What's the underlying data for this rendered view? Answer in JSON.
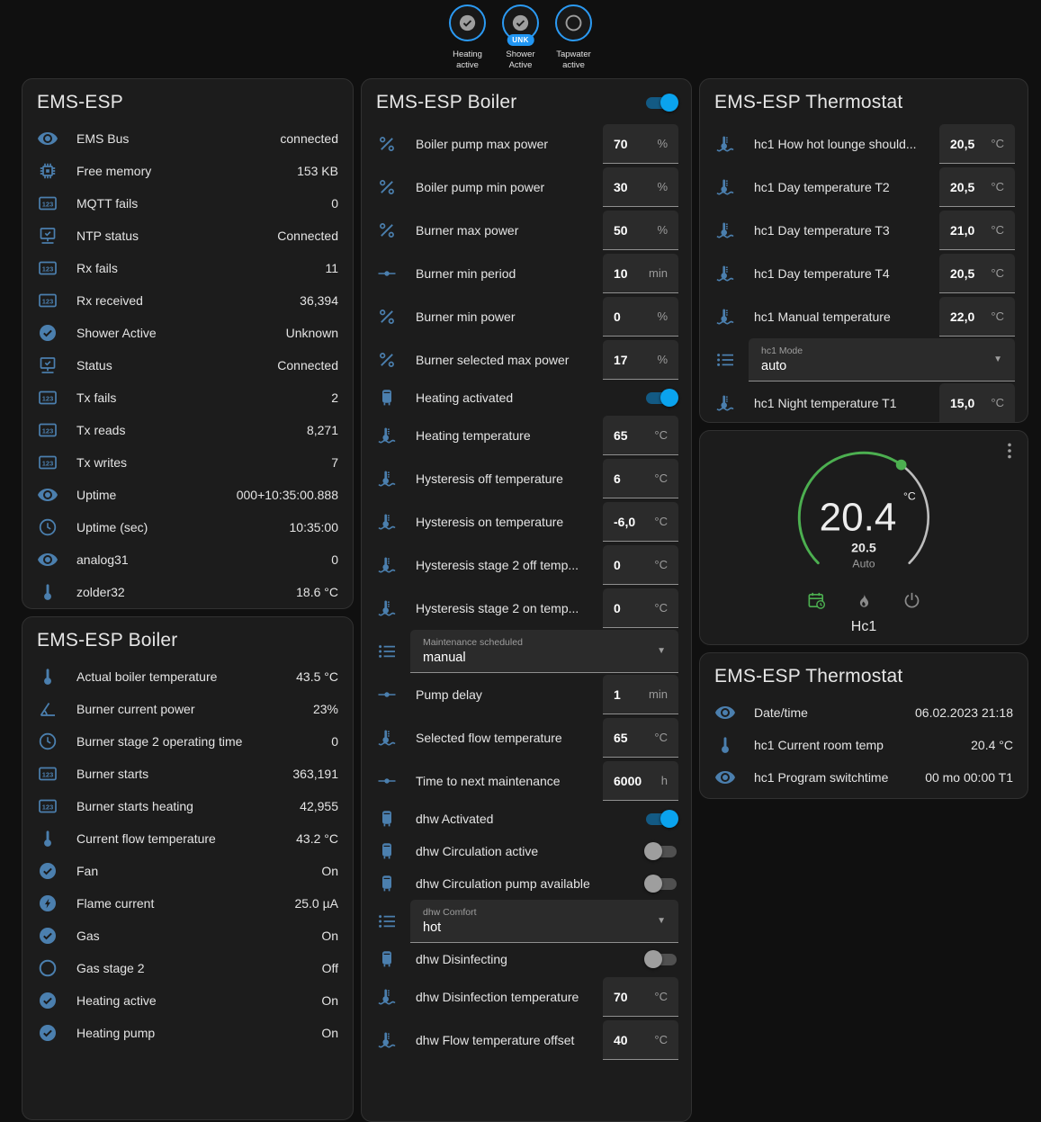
{
  "colors": {
    "page_bg": "#101010",
    "card_bg": "#1c1c1c",
    "icon_blue": "#4b7fae",
    "toggle_on_thumb": "#0aa3ee",
    "toggle_on_track": "#135a84",
    "badge_blue": "#2196f3",
    "dial_green": "#4caf50"
  },
  "top_badges": [
    {
      "icon": "check-circle",
      "label": "Heating active",
      "badge": null
    },
    {
      "icon": "check-circle",
      "label": "Shower Active",
      "badge": "UNK"
    },
    {
      "icon": "circle-outline",
      "label": "Tapwater active",
      "badge": null
    }
  ],
  "cards": {
    "left_status": {
      "title": "EMS-ESP",
      "rows": [
        {
          "icon": "eye",
          "name": "EMS Bus",
          "value": "connected"
        },
        {
          "icon": "chip",
          "name": "Free memory",
          "value": "153 KB"
        },
        {
          "icon": "counter",
          "name": "MQTT fails",
          "value": "0"
        },
        {
          "icon": "network-check",
          "name": "NTP status",
          "value": "Connected"
        },
        {
          "icon": "counter",
          "name": "Rx fails",
          "value": "11"
        },
        {
          "icon": "counter",
          "name": "Rx received",
          "value": "36,394"
        },
        {
          "icon": "check-circle",
          "name": "Shower Active",
          "value": "Unknown"
        },
        {
          "icon": "network-check",
          "name": "Status",
          "value": "Connected"
        },
        {
          "icon": "counter",
          "name": "Tx fails",
          "value": "2"
        },
        {
          "icon": "counter",
          "name": "Tx reads",
          "value": "8,271"
        },
        {
          "icon": "counter",
          "name": "Tx writes",
          "value": "7"
        },
        {
          "icon": "eye",
          "name": "Uptime",
          "value": "000+10:35:00.888"
        },
        {
          "icon": "clock",
          "name": "Uptime (sec)",
          "value": "10:35:00"
        },
        {
          "icon": "eye",
          "name": "analog31",
          "value": "0"
        },
        {
          "icon": "thermometer",
          "name": "zolder32",
          "value": "18.6 °C"
        }
      ]
    },
    "left_boiler": {
      "title": "EMS-ESP Boiler",
      "rows": [
        {
          "icon": "thermometer",
          "name": "Actual boiler temperature",
          "value": "43.5 °C"
        },
        {
          "icon": "angle-acute",
          "name": "Burner current power",
          "value": "23%"
        },
        {
          "icon": "clock",
          "name": "Burner stage 2 operating time",
          "value": "0"
        },
        {
          "icon": "counter",
          "name": "Burner starts",
          "value": "363,191"
        },
        {
          "icon": "counter",
          "name": "Burner starts heating",
          "value": "42,955"
        },
        {
          "icon": "thermometer",
          "name": "Current flow temperature",
          "value": "43.2 °C"
        },
        {
          "icon": "check-circle",
          "name": "Fan",
          "value": "On"
        },
        {
          "icon": "flash-circle",
          "name": "Flame current",
          "value": "25.0 µA"
        },
        {
          "icon": "check-circle",
          "name": "Gas",
          "value": "On"
        },
        {
          "icon": "circle-outline",
          "name": "Gas stage 2",
          "value": "Off"
        },
        {
          "icon": "check-circle",
          "name": "Heating active",
          "value": "On"
        },
        {
          "icon": "check-circle",
          "name": "Heating pump",
          "value": "On"
        }
      ]
    },
    "boiler_config": {
      "title": "EMS-ESP Boiler",
      "header_toggle": "on",
      "rows": [
        {
          "type": "number",
          "icon": "percent",
          "name": "Boiler pump max power",
          "value": "70",
          "unit": "%"
        },
        {
          "type": "number",
          "icon": "percent",
          "name": "Boiler pump min power",
          "value": "30",
          "unit": "%"
        },
        {
          "type": "number",
          "icon": "percent",
          "name": "Burner max power",
          "value": "50",
          "unit": "%"
        },
        {
          "type": "number",
          "icon": "ray-vertex",
          "name": "Burner min period",
          "value": "10",
          "unit": "min"
        },
        {
          "type": "number",
          "icon": "percent",
          "name": "Burner min power",
          "value": "0",
          "unit": "%"
        },
        {
          "type": "number",
          "icon": "percent",
          "name": "Burner selected max power",
          "value": "17",
          "unit": "%"
        },
        {
          "type": "toggle",
          "icon": "water-boiler",
          "name": "Heating activated",
          "value": "on"
        },
        {
          "type": "number",
          "icon": "coolant-temperature",
          "name": "Heating temperature",
          "value": "65",
          "unit": "°C"
        },
        {
          "type": "number",
          "icon": "coolant-temperature",
          "name": "Hysteresis off temperature",
          "value": "6",
          "unit": "°C"
        },
        {
          "type": "number",
          "icon": "coolant-temperature",
          "name": "Hysteresis on temperature",
          "value": "-6,0",
          "unit": "°C"
        },
        {
          "type": "number",
          "icon": "coolant-temperature",
          "name": "Hysteresis stage 2 off temp...",
          "value": "0",
          "unit": "°C"
        },
        {
          "type": "number",
          "icon": "coolant-temperature",
          "name": "Hysteresis stage 2 on temp...",
          "value": "0",
          "unit": "°C"
        },
        {
          "type": "select",
          "icon": "list",
          "name": "Maintenance scheduled",
          "value": "manual"
        },
        {
          "type": "number",
          "icon": "ray-vertex",
          "name": "Pump delay",
          "value": "1",
          "unit": "min"
        },
        {
          "type": "number",
          "icon": "coolant-temperature",
          "name": "Selected flow temperature",
          "value": "65",
          "unit": "°C"
        },
        {
          "type": "number",
          "icon": "ray-vertex",
          "name": "Time to next maintenance",
          "value": "6000",
          "unit": "h"
        },
        {
          "type": "toggle",
          "icon": "water-boiler",
          "name": "dhw Activated",
          "value": "on"
        },
        {
          "type": "toggle",
          "icon": "water-boiler",
          "name": "dhw Circulation active",
          "value": "off"
        },
        {
          "type": "toggle",
          "icon": "water-boiler",
          "name": "dhw Circulation pump available",
          "value": "off"
        },
        {
          "type": "select",
          "icon": "list",
          "name": "dhw Comfort",
          "value": "hot"
        },
        {
          "type": "toggle",
          "icon": "water-boiler",
          "name": "dhw Disinfecting",
          "value": "off"
        },
        {
          "type": "number",
          "icon": "coolant-temperature",
          "name": "dhw Disinfection temperature",
          "value": "70",
          "unit": "°C"
        },
        {
          "type": "number",
          "icon": "coolant-temperature",
          "name": "dhw Flow temperature offset",
          "value": "40",
          "unit": "°C"
        }
      ]
    },
    "thermostat_config": {
      "title": "EMS-ESP Thermostat",
      "rows": [
        {
          "type": "number",
          "icon": "coolant-temperature",
          "name": "hc1 How hot lounge should...",
          "value": "20,5",
          "unit": "°C"
        },
        {
          "type": "number",
          "icon": "coolant-temperature",
          "name": "hc1 Day temperature T2",
          "value": "20,5",
          "unit": "°C"
        },
        {
          "type": "number",
          "icon": "coolant-temperature",
          "name": "hc1 Day temperature T3",
          "value": "21,0",
          "unit": "°C"
        },
        {
          "type": "number",
          "icon": "coolant-temperature",
          "name": "hc1 Day temperature T4",
          "value": "20,5",
          "unit": "°C"
        },
        {
          "type": "number",
          "icon": "coolant-temperature",
          "name": "hc1 Manual temperature",
          "value": "22,0",
          "unit": "°C"
        },
        {
          "type": "select",
          "icon": "list",
          "name": "hc1 Mode",
          "value": "auto"
        },
        {
          "type": "number",
          "icon": "coolant-temperature",
          "name": "hc1 Night temperature T1",
          "value": "15,0",
          "unit": "°C"
        }
      ]
    },
    "dial": {
      "current": "20.4",
      "unit": "°C",
      "target": "20.5",
      "mode": "Auto",
      "zone": "Hc1",
      "icons": [
        "calendar-clock",
        "fire",
        "power"
      ]
    },
    "thermostat_status": {
      "title": "EMS-ESP Thermostat",
      "rows": [
        {
          "icon": "eye",
          "name": "Date/time",
          "value": "06.02.2023 21:18"
        },
        {
          "icon": "thermometer",
          "name": "hc1 Current room temp",
          "value": "20.4 °C"
        },
        {
          "icon": "eye",
          "name": "hc1 Program switchtime",
          "value": "00 mo 00:00 T1"
        }
      ]
    }
  }
}
